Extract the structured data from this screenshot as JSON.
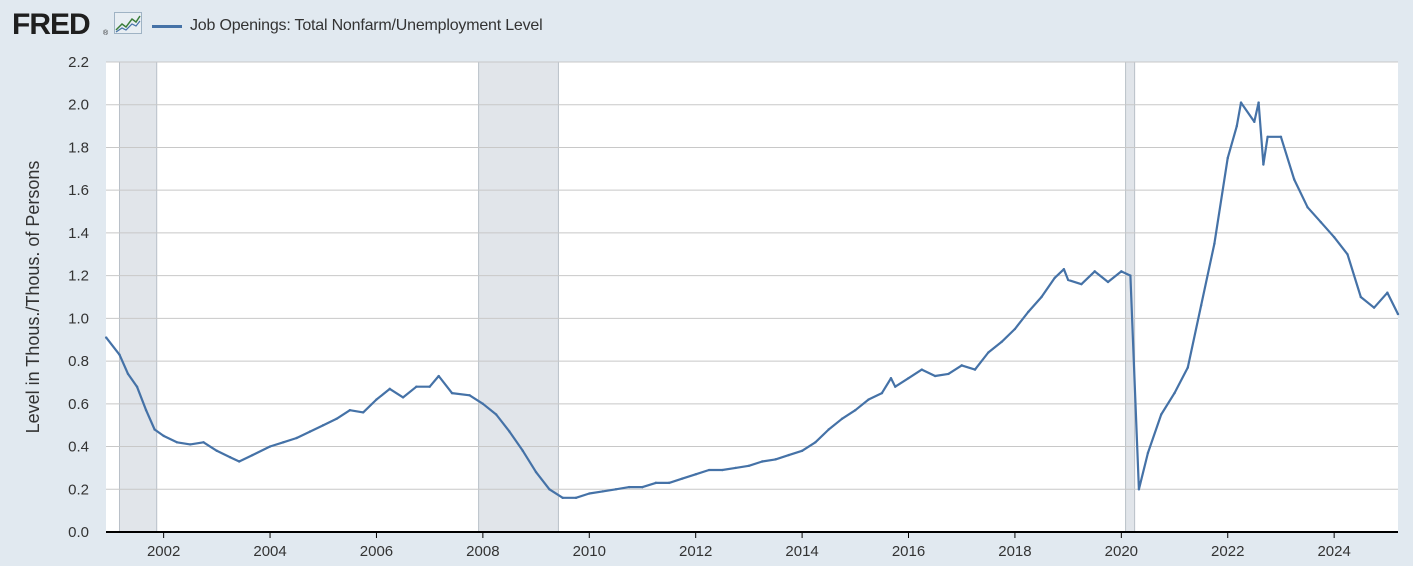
{
  "header": {
    "logo_text": "FRED",
    "logo_registered": "®",
    "logo_icon": "line-graph-icon"
  },
  "chart_data": {
    "type": "line",
    "title": "",
    "legend_position": "top-left",
    "ylabel": "Level in Thous./Thous. of Persons",
    "xlabel": "",
    "xlim": [
      2000.9167,
      2025.2
    ],
    "ylim": [
      0.0,
      2.2
    ],
    "grid": true,
    "y_ticks": [
      "0.0",
      "0.2",
      "0.4",
      "0.6",
      "0.8",
      "1.0",
      "1.2",
      "1.4",
      "1.6",
      "1.8",
      "2.0",
      "2.2"
    ],
    "x_ticks": [
      "2002",
      "2004",
      "2006",
      "2008",
      "2010",
      "2012",
      "2014",
      "2016",
      "2018",
      "2020",
      "2022",
      "2024"
    ],
    "recessions": [
      [
        2001.17,
        2001.87
      ],
      [
        2007.92,
        2009.42
      ],
      [
        2020.08,
        2020.25
      ]
    ],
    "colors": {
      "series": "#4572a7",
      "recession": "#e1e5ea",
      "background": "#e1e9f0",
      "plot": "#ffffff"
    },
    "series": [
      {
        "name": "Job Openings: Total Nonfarm/Unemployment Level",
        "points": [
          [
            2000.92,
            0.91
          ],
          [
            2001.17,
            0.83
          ],
          [
            2001.33,
            0.74
          ],
          [
            2001.5,
            0.68
          ],
          [
            2001.67,
            0.57
          ],
          [
            2001.83,
            0.48
          ],
          [
            2002.0,
            0.45
          ],
          [
            2002.25,
            0.42
          ],
          [
            2002.5,
            0.41
          ],
          [
            2002.75,
            0.42
          ],
          [
            2003.0,
            0.38
          ],
          [
            2003.25,
            0.35
          ],
          [
            2003.42,
            0.33
          ],
          [
            2003.67,
            0.36
          ],
          [
            2004.0,
            0.4
          ],
          [
            2004.25,
            0.42
          ],
          [
            2004.5,
            0.44
          ],
          [
            2004.75,
            0.47
          ],
          [
            2005.0,
            0.5
          ],
          [
            2005.25,
            0.53
          ],
          [
            2005.5,
            0.57
          ],
          [
            2005.75,
            0.56
          ],
          [
            2006.0,
            0.62
          ],
          [
            2006.25,
            0.67
          ],
          [
            2006.5,
            0.63
          ],
          [
            2006.75,
            0.68
          ],
          [
            2007.0,
            0.68
          ],
          [
            2007.17,
            0.73
          ],
          [
            2007.42,
            0.65
          ],
          [
            2007.75,
            0.64
          ],
          [
            2008.0,
            0.6
          ],
          [
            2008.25,
            0.55
          ],
          [
            2008.5,
            0.47
          ],
          [
            2008.75,
            0.38
          ],
          [
            2009.0,
            0.28
          ],
          [
            2009.25,
            0.2
          ],
          [
            2009.5,
            0.16
          ],
          [
            2009.75,
            0.16
          ],
          [
            2010.0,
            0.18
          ],
          [
            2010.25,
            0.19
          ],
          [
            2010.5,
            0.2
          ],
          [
            2010.75,
            0.21
          ],
          [
            2011.0,
            0.21
          ],
          [
            2011.25,
            0.23
          ],
          [
            2011.5,
            0.23
          ],
          [
            2011.75,
            0.25
          ],
          [
            2012.0,
            0.27
          ],
          [
            2012.25,
            0.29
          ],
          [
            2012.5,
            0.29
          ],
          [
            2012.75,
            0.3
          ],
          [
            2013.0,
            0.31
          ],
          [
            2013.25,
            0.33
          ],
          [
            2013.5,
            0.34
          ],
          [
            2013.75,
            0.36
          ],
          [
            2014.0,
            0.38
          ],
          [
            2014.25,
            0.42
          ],
          [
            2014.5,
            0.48
          ],
          [
            2014.75,
            0.53
          ],
          [
            2015.0,
            0.57
          ],
          [
            2015.25,
            0.62
          ],
          [
            2015.5,
            0.65
          ],
          [
            2015.67,
            0.72
          ],
          [
            2015.75,
            0.68
          ],
          [
            2016.0,
            0.72
          ],
          [
            2016.25,
            0.76
          ],
          [
            2016.5,
            0.73
          ],
          [
            2016.75,
            0.74
          ],
          [
            2017.0,
            0.78
          ],
          [
            2017.25,
            0.76
          ],
          [
            2017.5,
            0.84
          ],
          [
            2017.75,
            0.89
          ],
          [
            2018.0,
            0.95
          ],
          [
            2018.25,
            1.03
          ],
          [
            2018.5,
            1.1
          ],
          [
            2018.75,
            1.19
          ],
          [
            2018.92,
            1.23
          ],
          [
            2019.0,
            1.18
          ],
          [
            2019.25,
            1.16
          ],
          [
            2019.5,
            1.22
          ],
          [
            2019.75,
            1.17
          ],
          [
            2020.0,
            1.22
          ],
          [
            2020.17,
            1.2
          ],
          [
            2020.33,
            0.2
          ],
          [
            2020.5,
            0.37
          ],
          [
            2020.75,
            0.55
          ],
          [
            2021.0,
            0.65
          ],
          [
            2021.25,
            0.77
          ],
          [
            2021.5,
            1.06
          ],
          [
            2021.75,
            1.35
          ],
          [
            2022.0,
            1.75
          ],
          [
            2022.17,
            1.9
          ],
          [
            2022.25,
            2.01
          ],
          [
            2022.5,
            1.92
          ],
          [
            2022.58,
            2.01
          ],
          [
            2022.67,
            1.72
          ],
          [
            2022.75,
            1.85
          ],
          [
            2023.0,
            1.85
          ],
          [
            2023.25,
            1.65
          ],
          [
            2023.5,
            1.52
          ],
          [
            2023.75,
            1.45
          ],
          [
            2024.0,
            1.38
          ],
          [
            2024.25,
            1.3
          ],
          [
            2024.5,
            1.1
          ],
          [
            2024.75,
            1.05
          ],
          [
            2025.0,
            1.12
          ],
          [
            2025.2,
            1.02
          ]
        ]
      }
    ]
  }
}
